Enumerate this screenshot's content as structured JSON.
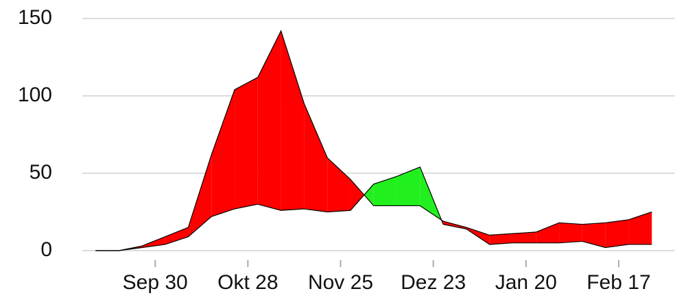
{
  "chart_data": {
    "type": "difference-area",
    "x": [
      -18,
      -11,
      -4,
      3,
      10,
      17,
      24,
      31,
      38,
      45,
      52,
      59,
      66,
      73,
      80,
      87,
      94,
      101,
      108,
      115,
      122,
      129,
      136,
      143,
      150
    ],
    "series": [
      {
        "color": "#ff0000",
        "values": [
          0,
          0,
          3,
          9,
          15,
          62,
          104,
          112,
          142,
          95,
          60,
          46,
          29,
          29,
          29,
          19,
          15,
          10,
          11,
          12,
          18,
          17,
          18,
          20,
          25
        ]
      },
      {
        "color": "#22f01e",
        "values": [
          0,
          0,
          2,
          4,
          9,
          22,
          27,
          30,
          26,
          27,
          25,
          26,
          43,
          48,
          54,
          17,
          14,
          4,
          5,
          5,
          5,
          6,
          2,
          4,
          4
        ]
      }
    ],
    "xlim": [
      -22,
      157
    ],
    "xticks": [
      {
        "value": 0,
        "label": "Sep 30"
      },
      {
        "value": 28,
        "label": "Okt 28"
      },
      {
        "value": 56,
        "label": "Nov 25"
      },
      {
        "value": 84,
        "label": "Dez 23"
      },
      {
        "value": 112,
        "label": "Jan 20"
      },
      {
        "value": 140,
        "label": "Feb 17"
      }
    ],
    "ylim": [
      0,
      150
    ],
    "yticks": [
      0,
      50,
      100,
      150
    ],
    "grid": true
  }
}
